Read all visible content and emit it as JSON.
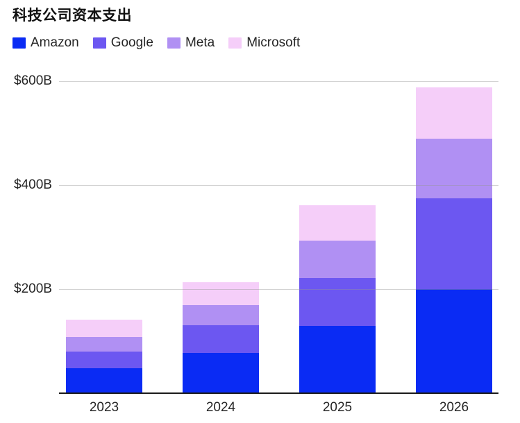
{
  "chart_data": {
    "type": "bar",
    "stacked": true,
    "title": "科技公司资本支出",
    "categories": [
      "2023",
      "2024",
      "2025",
      "2026"
    ],
    "series": [
      {
        "name": "Amazon",
        "color": "#0A2BF4",
        "values": [
          48,
          78,
          130,
          200
        ]
      },
      {
        "name": "Google",
        "color": "#6C57F1",
        "values": [
          32,
          53,
          91,
          175
        ]
      },
      {
        "name": "Meta",
        "color": "#B090F3",
        "values": [
          28,
          39,
          72,
          115
        ]
      },
      {
        "name": "Microsoft",
        "color": "#F5CEF9",
        "values": [
          33,
          44,
          68,
          98
        ]
      }
    ],
    "totals": [
      141,
      214,
      361,
      588
    ],
    "unit": "$B",
    "ylim": [
      0,
      600
    ],
    "yticks": [
      {
        "label": "$200B",
        "value": 200
      },
      {
        "label": "$400B",
        "value": 400
      },
      {
        "label": "$600B",
        "value": 600
      }
    ],
    "legend_position": "top-left",
    "grid": "horizontal"
  },
  "colors": {
    "background": "#FFFFFF",
    "grid": "#DCDCDC",
    "axis": "#1A1A1A",
    "text": "#262626",
    "title": "#111111"
  }
}
